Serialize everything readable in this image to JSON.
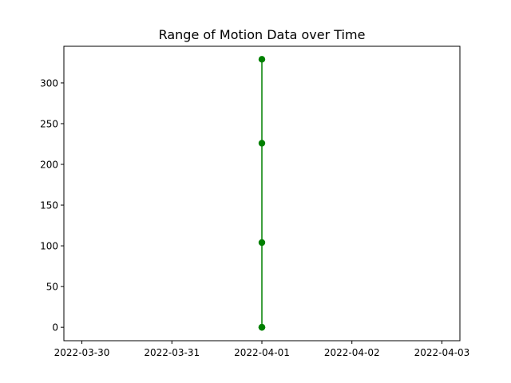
{
  "chart_data": {
    "type": "line",
    "title": "Range of Motion Data over Time",
    "xlabel": "",
    "ylabel": "",
    "x_ticks": [
      "2022-03-30",
      "2022-03-31",
      "2022-04-01",
      "2022-04-02",
      "2022-04-03"
    ],
    "y_ticks": [
      0,
      50,
      100,
      150,
      200,
      250,
      300
    ],
    "xlim": [
      "2022-03-29T19:12",
      "2022-04-03T04:48"
    ],
    "ylim": [
      -16.5,
      345
    ],
    "series": [
      {
        "color": "#008000",
        "marker": "circle",
        "points": [
          {
            "x": "2022-04-01",
            "y": 0
          },
          {
            "x": "2022-04-01",
            "y": 0
          },
          {
            "x": "2022-04-01",
            "y": 0
          },
          {
            "x": "2022-04-01",
            "y": 104
          },
          {
            "x": "2022-04-01",
            "y": 226
          },
          {
            "x": "2022-04-01",
            "y": 329
          }
        ]
      }
    ],
    "grid": false,
    "legend": "none"
  }
}
